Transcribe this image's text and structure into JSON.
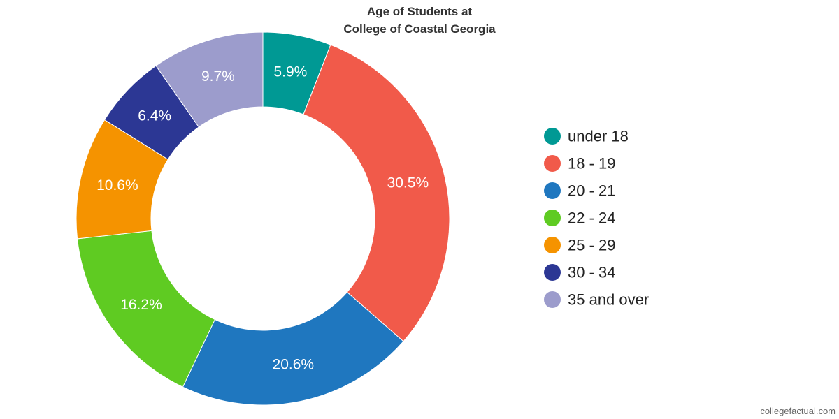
{
  "chart_data": {
    "type": "pie",
    "variant": "donut",
    "title": "Age of Students at College of Coastal Georgia",
    "title_lines": [
      "Age of Students at",
      "College of Coastal Georgia"
    ],
    "categories": [
      "under 18",
      "18 - 19",
      "20 - 21",
      "22 - 24",
      "25 - 29",
      "30 - 34",
      "35 and over"
    ],
    "values": [
      5.9,
      30.5,
      20.6,
      16.2,
      10.6,
      6.4,
      9.7
    ],
    "value_labels": [
      "5.9%",
      "30.5%",
      "20.6%",
      "16.2%",
      "10.6%",
      "6.4%",
      "9.7%"
    ],
    "colors": [
      "#009994",
      "#f15a4a",
      "#1f77bf",
      "#5fcb22",
      "#f59300",
      "#2c3794",
      "#9c9ccc"
    ],
    "legend_position": "right",
    "start_angle": "12 o'clock, clockwise"
  },
  "credit": "collegefactual.com"
}
